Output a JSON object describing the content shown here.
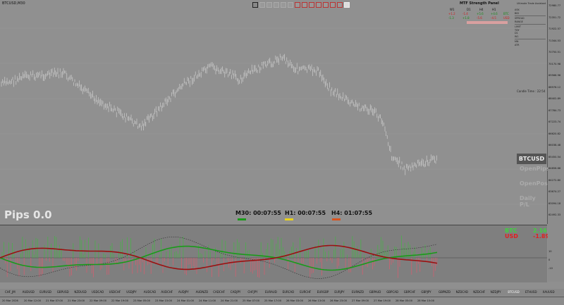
{
  "symbol_label": "BTCUSD,M30",
  "ultimate_trade_assistant": "Ultimate Trade Assistant",
  "mtf_panel": {
    "title": "MTF Strength Panel",
    "headers": [
      "W1",
      "D1",
      "H4",
      "H1"
    ],
    "btc_values": [
      "+1.2",
      "-1.4",
      "+5.6",
      "+4.6"
    ],
    "usd_values": [
      "-1.3",
      "+1.8",
      "-5.6",
      "-4.5"
    ],
    "btc_label": "BTC",
    "usd_label": "USD"
  },
  "right_panel_lines": [
    "ASK",
    "BID",
    "SPREAD",
    "RANGE",
    "LIMIT",
    "TDY",
    "D1",
    "W1",
    "MN",
    "ATR"
  ],
  "candle_time": "Candle Time : 22:54",
  "side_panel": {
    "symbol": "BTCUSD",
    "open_pips": "OpenPips",
    "open_pos": "OpenPos",
    "daily_pl": "Daily P/L"
  },
  "pips": "Pips 0.0",
  "timers": [
    {
      "label": "M30: 00:07:55",
      "color": "#1a9a1a"
    },
    {
      "label": "H1: 00:07:55",
      "color": "#e8d21a"
    },
    {
      "label": "H4: 01:07:55",
      "color": "#d9531e"
    }
  ],
  "strength": {
    "btc_label": "BTC",
    "btc_value": "2.16",
    "usd_label": "USD",
    "usd_value": "-1.89"
  },
  "price_axis": [
    "72980.77",
    "72351.72",
    "71922.57",
    "71344.53",
    "70750.51",
    "70170.98",
    "69566.96",
    "68976.12",
    "68402.89",
    "67784.73",
    "67223.74",
    "66620.82",
    "66038.48",
    "65450.54",
    "64856.66",
    "64272.80",
    "63674.27",
    "63094.18",
    "62492.33"
  ],
  "ind_axis": [
    "10",
    "0",
    "-10"
  ],
  "pairs": [
    "CHF_JM",
    "AUDUSD",
    "EURUSD",
    "GBPUSD",
    "NZDUSD",
    "USDCAD",
    "USDCHF",
    "USDJPY",
    "AUDCAD",
    "AUDCHF",
    "AUDJPY",
    "AUDNZD",
    "CADCHF",
    "CADJPY",
    "CHFJPY",
    "EURAUD",
    "EURCAD",
    "EURCHF",
    "EURGBP",
    "EURJPY",
    "EURNZD",
    "GBPAUD",
    "GBPCAD",
    "GBPCHF",
    "GBPJPY",
    "GBPNZD",
    "NZDCAD",
    "NZDCHF",
    "NZDJPY",
    "BTCUSD",
    "ETHUSD",
    "XAUUSD"
  ],
  "active_pair": "BTCUSD",
  "time_axis": [
    "20 Mar 2026",
    "20 Mar 12:00",
    "21 Mar 07:00",
    "21 Mar 23:00",
    "22 Mar 09:00",
    "22 Mar 19:00",
    "23 Mar 05:00",
    "23 Mar 15:00",
    "24 Mar 01:00",
    "24 Mar 11:00",
    "24 Mar 21:00",
    "25 Mar 07:00",
    "25 Mar 17:00",
    "26 Mar 03:00",
    "26 Mar 13:00",
    "26 Mar 23:00",
    "27 Mar 09:00",
    "27 Mar 19:00",
    "28 Mar 05:00",
    "28 Mar 15:00"
  ],
  "colors": {
    "btc": "#3fd23f",
    "usd": "#e02020",
    "candle": "#d9d9d9"
  }
}
